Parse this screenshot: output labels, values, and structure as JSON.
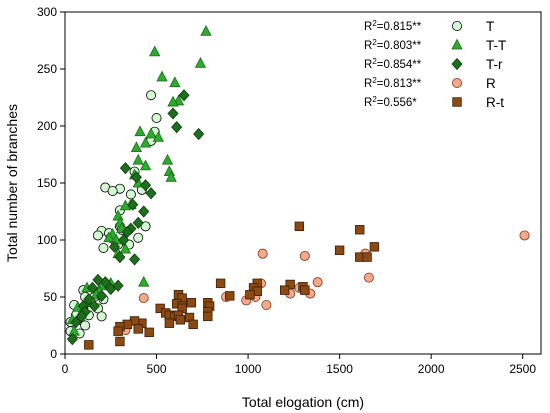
{
  "chart_data": {
    "type": "scatter",
    "xlabel": "Total elogation (cm)",
    "ylabel": "Total number of branches",
    "xlim": [
      0,
      2600
    ],
    "ylim": [
      0,
      300
    ],
    "xticks": [
      0,
      500,
      1000,
      1500,
      2000,
      2500
    ],
    "yticks": [
      0,
      50,
      100,
      150,
      200,
      250,
      300
    ],
    "grid": false,
    "legend": "top-right",
    "series": [
      {
        "name": "T",
        "r2": "0.815**",
        "marker": "circle",
        "fill": "#d4f7d4",
        "stroke": "#000000",
        "points": [
          [
            470,
            227
          ],
          [
            500,
            207
          ],
          [
            490,
            195
          ],
          [
            470,
            187
          ],
          [
            380,
            160
          ],
          [
            300,
            145
          ],
          [
            220,
            146
          ],
          [
            260,
            143
          ],
          [
            420,
            144
          ],
          [
            360,
            140
          ],
          [
            300,
            126
          ],
          [
            440,
            112
          ],
          [
            300,
            112
          ],
          [
            310,
            109
          ],
          [
            200,
            108
          ],
          [
            240,
            106
          ],
          [
            180,
            104
          ],
          [
            250,
            102
          ],
          [
            400,
            102
          ],
          [
            290,
            96
          ],
          [
            350,
            96
          ],
          [
            210,
            93
          ],
          [
            100,
            56
          ],
          [
            110,
            50
          ],
          [
            160,
            50
          ],
          [
            210,
            48
          ],
          [
            140,
            46
          ],
          [
            50,
            43
          ],
          [
            100,
            40
          ],
          [
            180,
            40
          ],
          [
            60,
            34
          ],
          [
            130,
            34
          ],
          [
            200,
            33
          ],
          [
            80,
            30
          ],
          [
            30,
            28
          ],
          [
            110,
            25
          ],
          [
            30,
            20
          ],
          [
            80,
            18
          ]
        ]
      },
      {
        "name": "T-T",
        "r2": "0.803**",
        "marker": "triangle",
        "fill": "#2eaa2e",
        "stroke": "#1a6e1a",
        "points": [
          [
            770,
            283
          ],
          [
            490,
            265
          ],
          [
            740,
            255
          ],
          [
            530,
            243
          ],
          [
            600,
            238
          ],
          [
            620,
            222
          ],
          [
            590,
            221
          ],
          [
            410,
            195
          ],
          [
            470,
            193
          ],
          [
            510,
            190
          ],
          [
            440,
            185
          ],
          [
            390,
            181
          ],
          [
            400,
            170
          ],
          [
            560,
            170
          ],
          [
            440,
            165
          ],
          [
            570,
            160
          ],
          [
            380,
            157
          ],
          [
            580,
            155
          ],
          [
            400,
            150
          ],
          [
            360,
            131
          ],
          [
            330,
            130
          ],
          [
            290,
            121
          ],
          [
            300,
            115
          ],
          [
            310,
            110
          ],
          [
            260,
            105
          ],
          [
            240,
            102
          ],
          [
            280,
            100
          ],
          [
            330,
            92
          ],
          [
            290,
            88
          ],
          [
            430,
            63
          ],
          [
            250,
            62
          ],
          [
            200,
            60
          ],
          [
            120,
            58
          ],
          [
            190,
            55
          ],
          [
            170,
            52
          ],
          [
            130,
            45
          ],
          [
            70,
            41
          ],
          [
            90,
            36
          ],
          [
            40,
            30
          ],
          [
            50,
            20
          ]
        ]
      },
      {
        "name": "T-r",
        "r2": "0.854**",
        "marker": "diamond",
        "fill": "#1f6e1f",
        "stroke": "#0d3d0d",
        "points": [
          [
            650,
            227
          ],
          [
            590,
            211
          ],
          [
            610,
            199
          ],
          [
            730,
            193
          ],
          [
            440,
            148
          ],
          [
            330,
            163
          ],
          [
            390,
            155
          ],
          [
            470,
            141
          ],
          [
            370,
            131
          ],
          [
            430,
            125
          ],
          [
            360,
            110
          ],
          [
            340,
            107
          ],
          [
            400,
            115
          ],
          [
            320,
            100
          ],
          [
            270,
            94
          ],
          [
            300,
            85
          ],
          [
            380,
            83
          ],
          [
            290,
            60
          ],
          [
            220,
            63
          ],
          [
            180,
            65
          ],
          [
            250,
            57
          ],
          [
            150,
            58
          ],
          [
            200,
            51
          ],
          [
            130,
            48
          ],
          [
            160,
            42
          ],
          [
            100,
            42
          ],
          [
            110,
            37
          ],
          [
            90,
            33
          ],
          [
            60,
            28
          ],
          [
            40,
            13
          ]
        ]
      },
      {
        "name": "R",
        "r2": "0.813**",
        "marker": "circle",
        "fill": "#f5a98c",
        "stroke": "#7a3a1a",
        "points": [
          [
            2510,
            104
          ],
          [
            1080,
            88
          ],
          [
            1640,
            88
          ],
          [
            1310,
            86
          ],
          [
            1660,
            67
          ],
          [
            1380,
            63
          ],
          [
            1070,
            62
          ],
          [
            1280,
            58
          ],
          [
            1230,
            53
          ],
          [
            1340,
            53
          ],
          [
            1040,
            50
          ],
          [
            430,
            49
          ],
          [
            880,
            50
          ],
          [
            990,
            47
          ],
          [
            1100,
            43
          ],
          [
            330,
            21
          ]
        ]
      },
      {
        "name": "R-t",
        "r2": "0.556*",
        "marker": "square",
        "fill": "#8b4a14",
        "stroke": "#3d1e05",
        "points": [
          [
            1280,
            112
          ],
          [
            1610,
            109
          ],
          [
            1690,
            94
          ],
          [
            1500,
            91
          ],
          [
            1610,
            85
          ],
          [
            1650,
            85
          ],
          [
            1050,
            62
          ],
          [
            1030,
            58
          ],
          [
            1230,
            61
          ],
          [
            1300,
            59
          ],
          [
            1310,
            56
          ],
          [
            1200,
            56
          ],
          [
            1050,
            55
          ],
          [
            1010,
            52
          ],
          [
            850,
            62
          ],
          [
            900,
            51
          ],
          [
            620,
            52
          ],
          [
            640,
            49
          ],
          [
            610,
            44
          ],
          [
            780,
            45
          ],
          [
            790,
            42
          ],
          [
            780,
            37
          ],
          [
            690,
            45
          ],
          [
            640,
            42
          ],
          [
            680,
            32
          ],
          [
            640,
            40
          ],
          [
            520,
            40
          ],
          [
            550,
            36
          ],
          [
            570,
            34
          ],
          [
            600,
            33
          ],
          [
            620,
            34
          ],
          [
            630,
            30
          ],
          [
            570,
            27
          ],
          [
            700,
            26
          ],
          [
            780,
            33
          ],
          [
            400,
            27
          ],
          [
            420,
            27
          ],
          [
            380,
            29
          ],
          [
            340,
            26
          ],
          [
            300,
            24
          ],
          [
            290,
            20
          ],
          [
            400,
            22
          ],
          [
            130,
            8
          ],
          [
            300,
            11
          ],
          [
            460,
            19
          ]
        ]
      }
    ]
  }
}
